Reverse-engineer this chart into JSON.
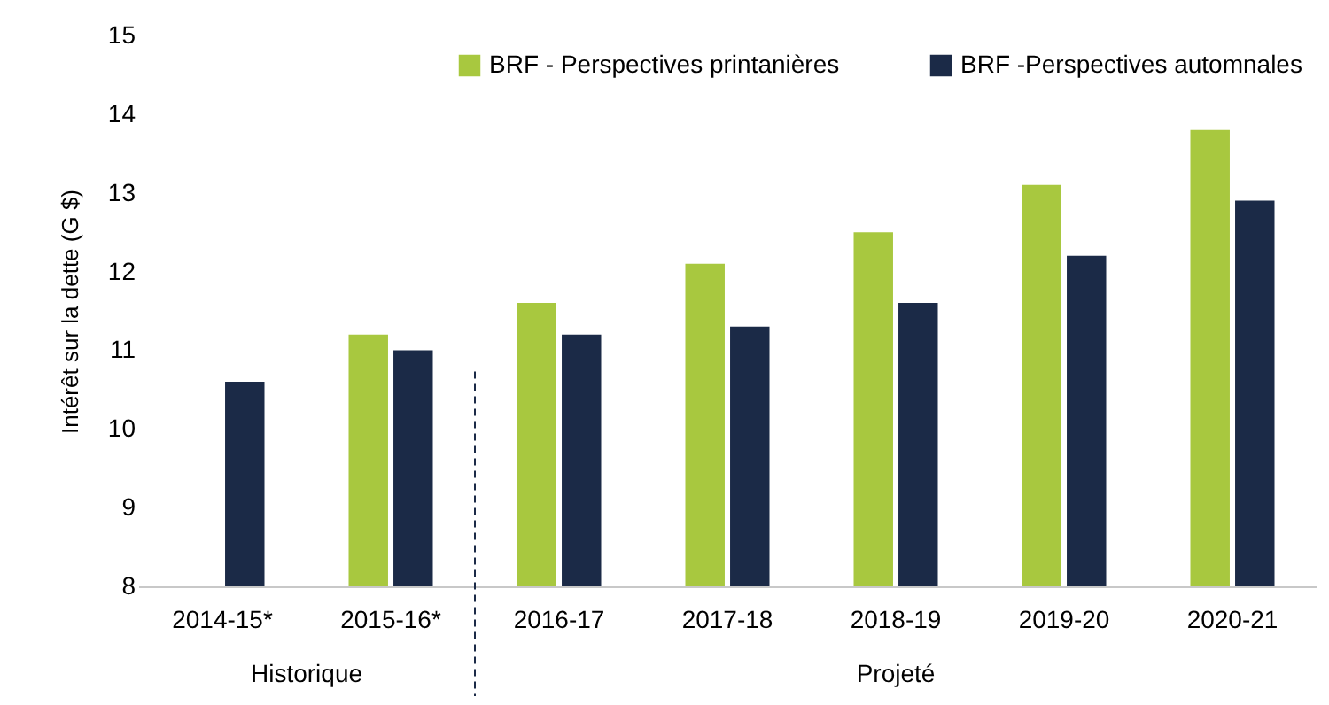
{
  "chart_data": {
    "type": "bar",
    "ylabel": "Intérêt sur la dette (G $)",
    "categories": [
      "2014-15*",
      "2015-16*",
      "2016-17",
      "2017-18",
      "2018-19",
      "2019-20",
      "2020-21"
    ],
    "series": [
      {
        "name": "BRF - Perspectives printanières",
        "color": "#a8c83f",
        "values": [
          null,
          11.2,
          11.6,
          12.1,
          12.5,
          13.1,
          13.8
        ]
      },
      {
        "name": "BRF -Perspectives automnales",
        "color": "#1b2a47",
        "values": [
          10.6,
          11.0,
          11.2,
          11.3,
          11.6,
          12.2,
          12.9
        ]
      }
    ],
    "ylim": [
      8,
      15
    ],
    "yticks": [
      8,
      9,
      10,
      11,
      12,
      13,
      14,
      15
    ],
    "grid": false,
    "legend": "top",
    "ref_lines": [
      {
        "axis": "x",
        "value": "2016-17",
        "line_style": "dashed",
        "color": "#1b2a47"
      }
    ],
    "annotations": [
      "Historique",
      "Projeté"
    ]
  }
}
